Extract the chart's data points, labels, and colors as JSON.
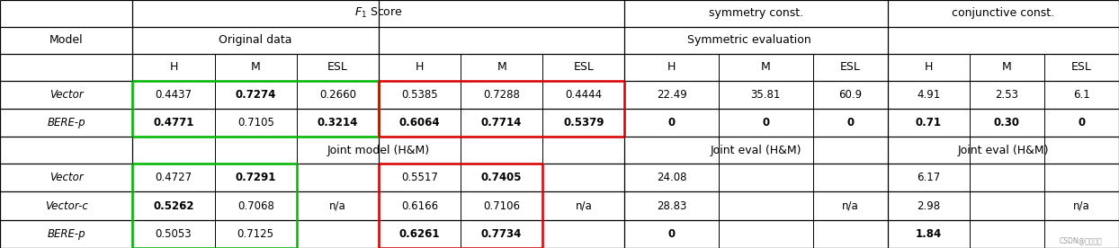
{
  "figsize": [
    12.44,
    2.76
  ],
  "dpi": 100,
  "bg_color": "#ffffff",
  "col_weights": [
    1.1,
    0.68,
    0.68,
    0.68,
    0.68,
    0.68,
    0.68,
    0.78,
    0.78,
    0.62,
    0.68,
    0.62,
    0.62
  ],
  "row_weights": [
    1.0,
    1.0,
    1.0,
    1.05,
    1.05,
    1.0,
    1.05,
    1.05,
    1.05
  ],
  "green_color": "#00bb00",
  "red_color": "#dd0000",
  "border_lw": 1.8,
  "major_lw": 0.9,
  "minor_lw": 0.7,
  "fontsize_header": 9.0,
  "fontsize_data": 8.5,
  "top_headers": {
    "f1_label": "$F_1$ Score",
    "sym_label": "symmetry const.",
    "conj_label": "conjunctive const."
  },
  "row1_headers": {
    "orig_label": "Original data",
    "sym_label": "Symmetric evaluation"
  },
  "row2_headers": [
    "H",
    "M",
    "ESL",
    "H",
    "M",
    "ESL",
    "H",
    "M",
    "ESL",
    "H",
    "M",
    "ESL"
  ],
  "model_label": "Model",
  "middle_labels": [
    "Joint model (H&M)",
    "Joint eval (H&M)",
    "Joint eval (H&M)"
  ],
  "top_rows": [
    {
      "model": "Vector",
      "italic": true,
      "values": [
        "0.4437",
        "0.7274",
        "0.2660",
        "0.5385",
        "0.7288",
        "0.4444",
        "22.49",
        "35.81",
        "60.9",
        "4.91",
        "2.53",
        "6.1"
      ],
      "bold": [
        false,
        true,
        false,
        false,
        false,
        false,
        false,
        false,
        false,
        false,
        false,
        false
      ]
    },
    {
      "model": "BERE-p",
      "italic": true,
      "values": [
        "0.4771",
        "0.7105",
        "0.3214",
        "0.6064",
        "0.7714",
        "0.5379",
        "0",
        "0",
        "0",
        "0.71",
        "0.30",
        "0"
      ],
      "bold": [
        true,
        false,
        true,
        true,
        true,
        true,
        true,
        true,
        true,
        true,
        true,
        true
      ]
    }
  ],
  "bottom_rows": [
    {
      "model": "Vector",
      "italic": true,
      "values": [
        "0.4727",
        "0.7291",
        "",
        "0.5517",
        "0.7405",
        "",
        "24.08",
        "",
        "",
        "6.17",
        "",
        ""
      ],
      "bold": [
        false,
        true,
        false,
        false,
        true,
        false,
        false,
        false,
        false,
        false,
        false,
        false
      ]
    },
    {
      "model": "Vector-c",
      "italic": true,
      "values": [
        "0.5262",
        "0.7068",
        "n/a",
        "0.6166",
        "0.7106",
        "n/a",
        "28.83",
        "",
        "n/a",
        "2.98",
        "",
        "n/a"
      ],
      "bold": [
        true,
        false,
        false,
        false,
        false,
        false,
        false,
        false,
        false,
        false,
        false,
        false
      ]
    },
    {
      "model": "BERE-p",
      "italic": true,
      "values": [
        "0.5053",
        "0.7125",
        "",
        "0.6261",
        "0.7734",
        "",
        "0",
        "",
        "",
        "1.84",
        "",
        ""
      ],
      "bold": [
        false,
        false,
        false,
        true,
        true,
        false,
        true,
        false,
        false,
        true,
        false,
        false
      ]
    }
  ],
  "watermark": "CSDN@墨夜之枫"
}
